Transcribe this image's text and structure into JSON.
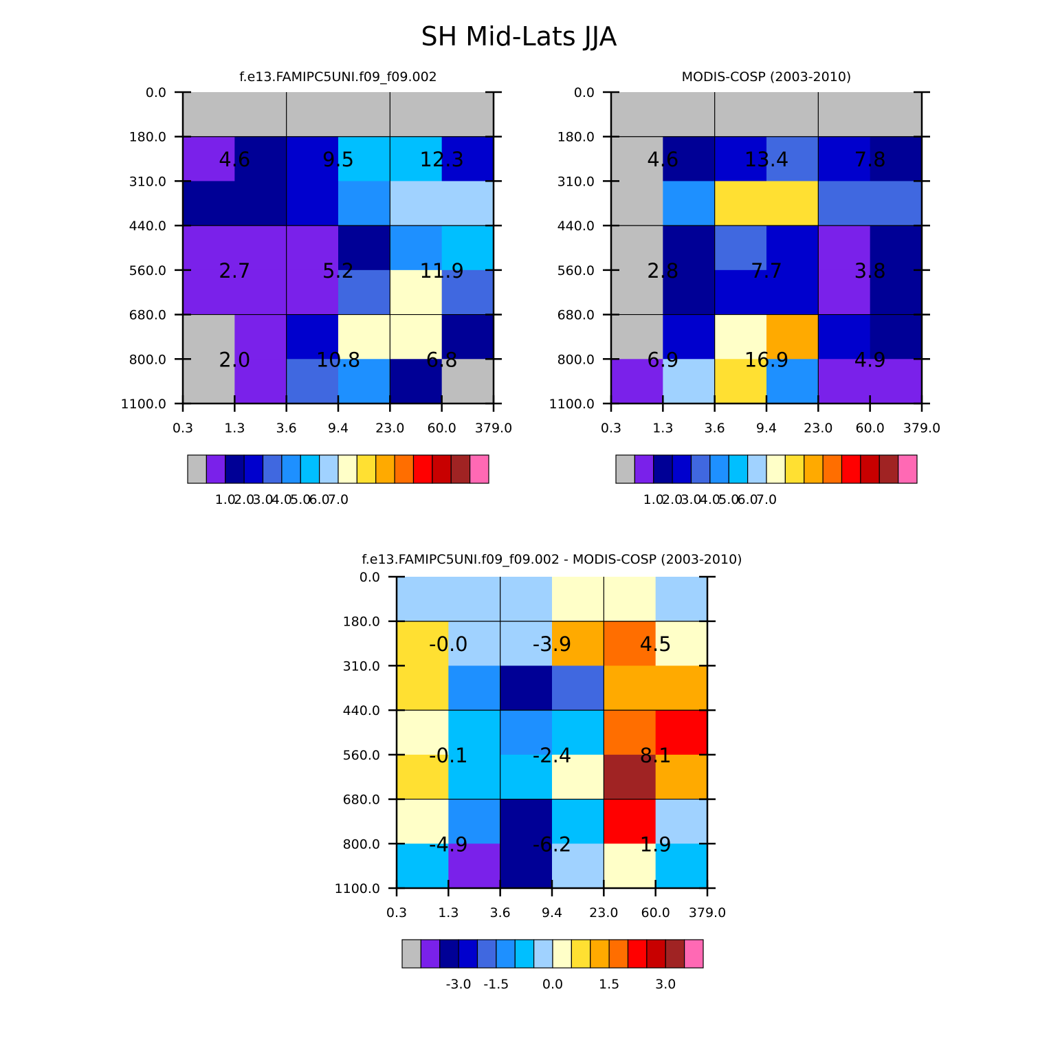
{
  "title": "SH Mid-Lats JJA",
  "colors": {
    "missing": "#bebebe",
    "palette": [
      "#bebebe",
      "#7a21ea",
      "#000096",
      "#0000cd",
      "#4068e0",
      "#1e90ff",
      "#00bfff",
      "#a0d2ff",
      "#ffffc8",
      "#ffe032",
      "#ffaa00",
      "#ff6e00",
      "#ff0000",
      "#c80000",
      "#a02323",
      "#ff69b4"
    ]
  },
  "chart_data": [
    {
      "type": "heatmap",
      "id": "model",
      "title": "f.e13.FAMIPC5UNI.f09_f09.002",
      "x_tick_labels": [
        "0.3",
        "1.3",
        "3.6",
        "9.4",
        "23.0",
        "60.0",
        "379.0"
      ],
      "y_tick_labels": [
        "0.0",
        "180.0",
        "310.0",
        "440.0",
        "560.0",
        "680.0",
        "800.0",
        "1100.0"
      ],
      "cell_color_index": [
        [
          0,
          0,
          0,
          0,
          0,
          0
        ],
        [
          1,
          2,
          3,
          6,
          6,
          3
        ],
        [
          2,
          2,
          3,
          5,
          7,
          7
        ],
        [
          1,
          1,
          1,
          2,
          5,
          6
        ],
        [
          1,
          1,
          1,
          4,
          8,
          4
        ],
        [
          0,
          1,
          3,
          8,
          8,
          2
        ],
        [
          0,
          1,
          4,
          5,
          2,
          0
        ]
      ],
      "block_labels": [
        [
          "4.6",
          "9.5",
          "12.3"
        ],
        [
          "2.7",
          "5.2",
          "11.9"
        ],
        [
          "2.0",
          "10.8",
          "6.8"
        ]
      ],
      "colorbar_labels": [
        "1.0",
        "2.0",
        "3.0",
        "4.0",
        "5.0",
        "6.0",
        "7.0"
      ]
    },
    {
      "type": "heatmap",
      "id": "obs",
      "title": "MODIS-COSP (2003-2010)",
      "x_tick_labels": [
        "0.3",
        "1.3",
        "3.6",
        "9.4",
        "23.0",
        "60.0",
        "379.0"
      ],
      "y_tick_labels": [
        "0.0",
        "180.0",
        "310.0",
        "440.0",
        "560.0",
        "680.0",
        "800.0",
        "1100.0"
      ],
      "cell_color_index": [
        [
          0,
          0,
          0,
          0,
          0,
          0
        ],
        [
          0,
          2,
          3,
          4,
          3,
          2
        ],
        [
          0,
          5,
          9,
          9,
          4,
          4
        ],
        [
          0,
          2,
          4,
          3,
          1,
          2
        ],
        [
          0,
          2,
          3,
          3,
          1,
          2
        ],
        [
          0,
          3,
          8,
          10,
          3,
          2
        ],
        [
          1,
          7,
          9,
          5,
          1,
          1
        ]
      ],
      "block_labels": [
        [
          "4.6",
          "13.4",
          "7.8"
        ],
        [
          "2.8",
          "7.7",
          "3.8"
        ],
        [
          "6.9",
          "16.9",
          "4.9"
        ]
      ],
      "colorbar_labels": [
        "1.0",
        "2.0",
        "3.0",
        "4.0",
        "5.0",
        "6.0",
        "7.0"
      ]
    },
    {
      "type": "heatmap",
      "id": "diff",
      "title": "f.e13.FAMIPC5UNI.f09_f09.002 - MODIS-COSP (2003-2010)",
      "x_tick_labels": [
        "0.3",
        "1.3",
        "3.6",
        "9.4",
        "23.0",
        "60.0",
        "379.0"
      ],
      "y_tick_labels": [
        "0.0",
        "180.0",
        "310.0",
        "440.0",
        "560.0",
        "680.0",
        "800.0",
        "1100.0"
      ],
      "cell_color_index": [
        [
          7,
          7,
          7,
          8,
          8,
          7
        ],
        [
          9,
          7,
          7,
          10,
          11,
          8
        ],
        [
          9,
          5,
          2,
          4,
          10,
          10
        ],
        [
          8,
          6,
          5,
          6,
          11,
          12
        ],
        [
          9,
          6,
          6,
          8,
          14,
          10
        ],
        [
          8,
          5,
          2,
          6,
          12,
          7
        ],
        [
          6,
          1,
          2,
          7,
          8,
          6
        ]
      ],
      "block_labels": [
        [
          "-0.0",
          "-3.9",
          "4.5"
        ],
        [
          "-0.1",
          "-2.4",
          "8.1"
        ],
        [
          "-4.9",
          "-6.2",
          "1.9"
        ]
      ],
      "colorbar_labels": [
        "-3.0",
        "-1.5",
        "0.0",
        "1.5",
        "3.0"
      ]
    }
  ]
}
